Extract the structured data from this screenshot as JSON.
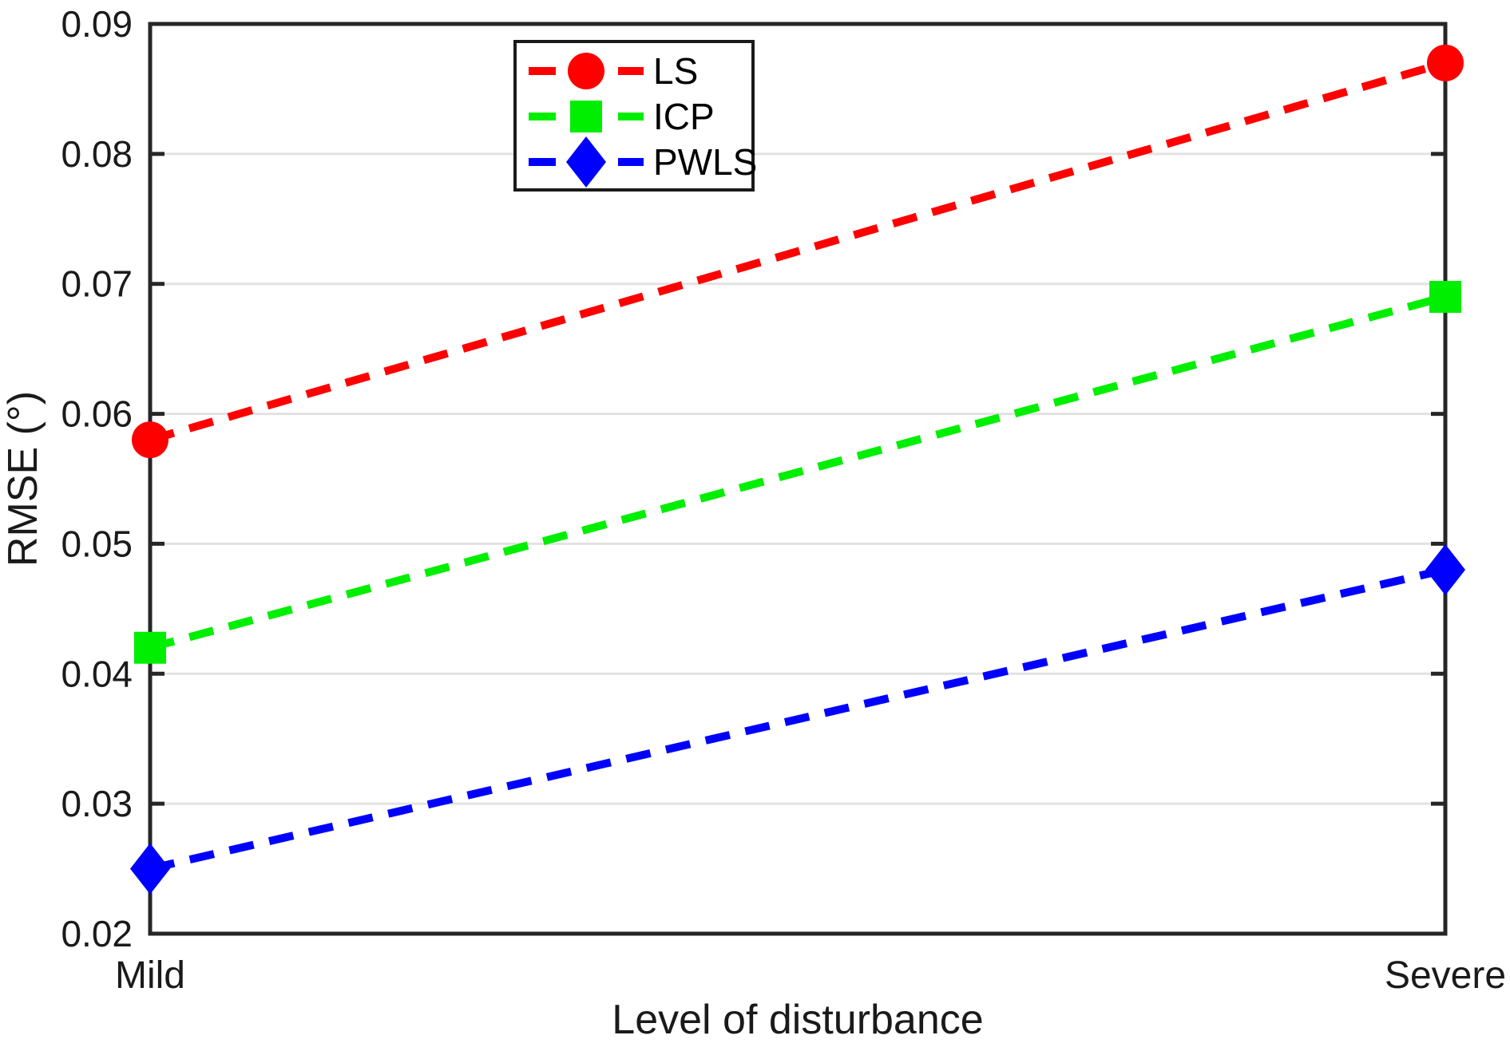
{
  "figure": {
    "background": "#FFFFFF",
    "axis_color": "#262626",
    "grid_color": "#E2E2E2",
    "tick_label_color": "#1A1A1A",
    "legend_border_color": "#1A1A1A",
    "legend_background": "#FFFFFF"
  },
  "chart_data": {
    "type": "line",
    "title": "",
    "xlabel": "Level of disturbance",
    "ylabel": "RMSE (°)",
    "categories": [
      "Mild",
      "Severe"
    ],
    "series": [
      {
        "name": "LS",
        "values": [
          0.058,
          0.087
        ],
        "color": "#FF0000",
        "marker": "circle",
        "linestyle": "dashed"
      },
      {
        "name": "ICP",
        "values": [
          0.042,
          0.069
        ],
        "color": "#00EE00",
        "marker": "square",
        "linestyle": "dashed"
      },
      {
        "name": "PWLS",
        "values": [
          0.025,
          0.048
        ],
        "color": "#0000FF",
        "marker": "diamond",
        "linestyle": "dashed"
      }
    ],
    "ylim": [
      0.02,
      0.09
    ],
    "yticks": [
      0.02,
      0.03,
      0.04,
      0.05,
      0.06,
      0.07,
      0.08,
      0.09
    ],
    "ytick_decimals": 2,
    "grid": "horizontal",
    "legend_position": "top-center-left",
    "legend_entries": [
      "LS",
      "ICP",
      "PWLS"
    ]
  }
}
